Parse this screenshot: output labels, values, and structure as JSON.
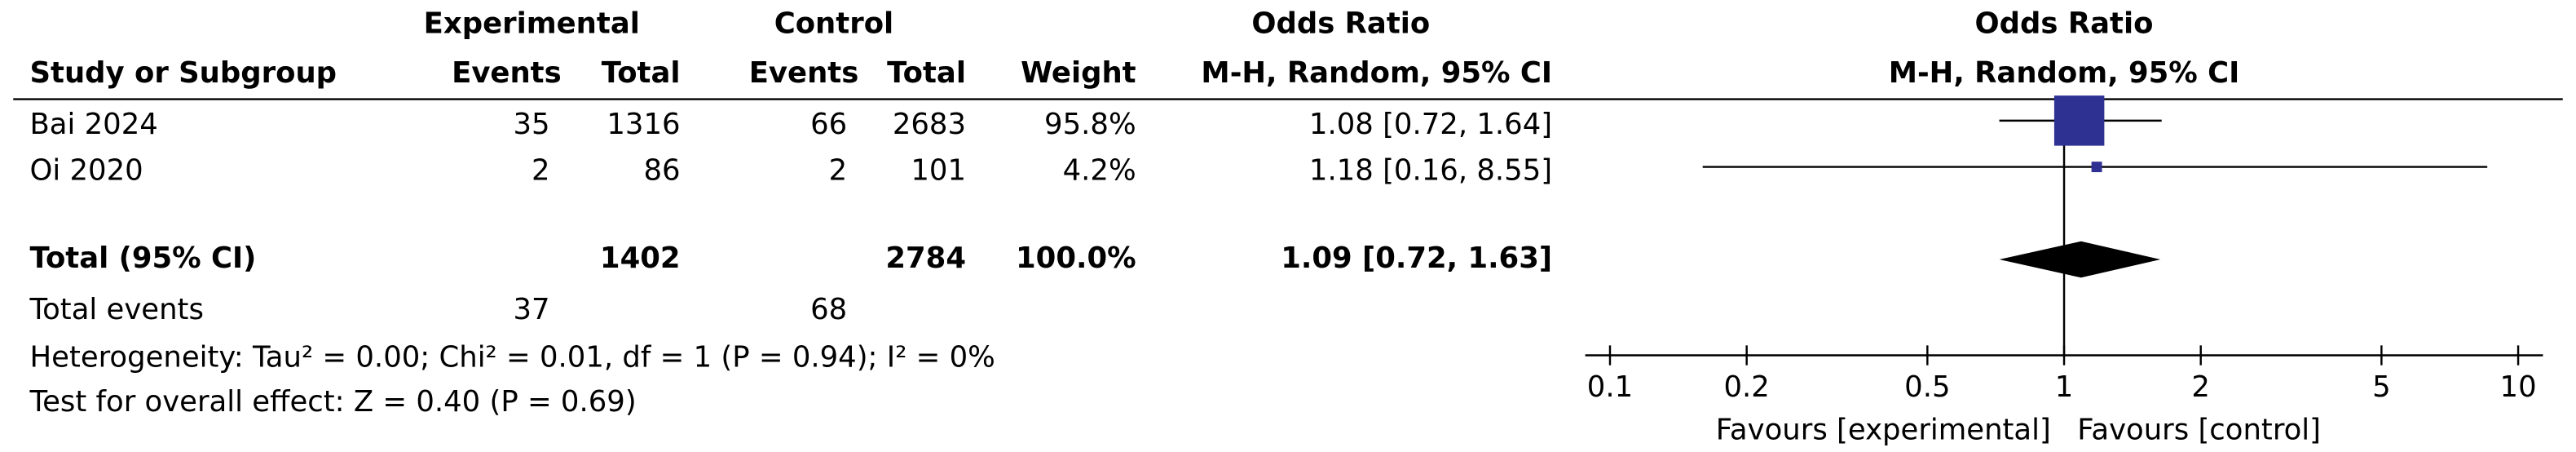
{
  "table": {
    "group_headers": [
      "Experimental",
      "Control",
      "Odds Ratio"
    ],
    "columns": [
      "Study or Subgroup",
      "Events",
      "Total",
      "Events",
      "Total",
      "Weight",
      "M-H, Random, 95% CI"
    ],
    "rows": [
      [
        "Bai 2024",
        "35",
        "1316",
        "66",
        "2683",
        "95.8%",
        "1.08 [0.72, 1.64]"
      ],
      [
        "Oi 2020",
        "2",
        "86",
        "2",
        "101",
        "4.2%",
        "1.18 [0.16, 8.55]"
      ]
    ],
    "total_row": {
      "label": "Total (95% CI)",
      "exp_total": "1402",
      "ctrl_total": "2784",
      "weight": "100.0%",
      "estimate": "1.09 [0.72, 1.63]"
    },
    "total_events": {
      "label": "Total events",
      "exp": "37",
      "ctrl": "68"
    },
    "notes": [
      "Heterogeneity: Tau² = 0.00; Chi² = 0.01, df = 1 (P = 0.94); I² = 0%",
      "Test for overall effect: Z = 0.40 (P = 0.69)"
    ]
  },
  "chart_data": {
    "type": "forest",
    "title": "Odds Ratio",
    "subtitle": "M-H, Random, 95% CI",
    "log_x": true,
    "xlim": [
      0.1,
      10
    ],
    "xticks": [
      0.1,
      0.2,
      0.5,
      1,
      2,
      5,
      10
    ],
    "xlabel_left": "Favours [experimental]",
    "xlabel_right": "Favours [control]",
    "color": "#2e3192",
    "diamond_color": "#000000",
    "values": [
      1.08,
      1.18
    ],
    "ci_low": [
      0.72,
      0.16
    ],
    "ci_high": [
      1.64,
      8.55
    ],
    "weights": [
      95.8,
      4.2
    ],
    "total": {
      "value": 1.09,
      "ci_low": 0.72,
      "ci_high": 1.63
    }
  }
}
